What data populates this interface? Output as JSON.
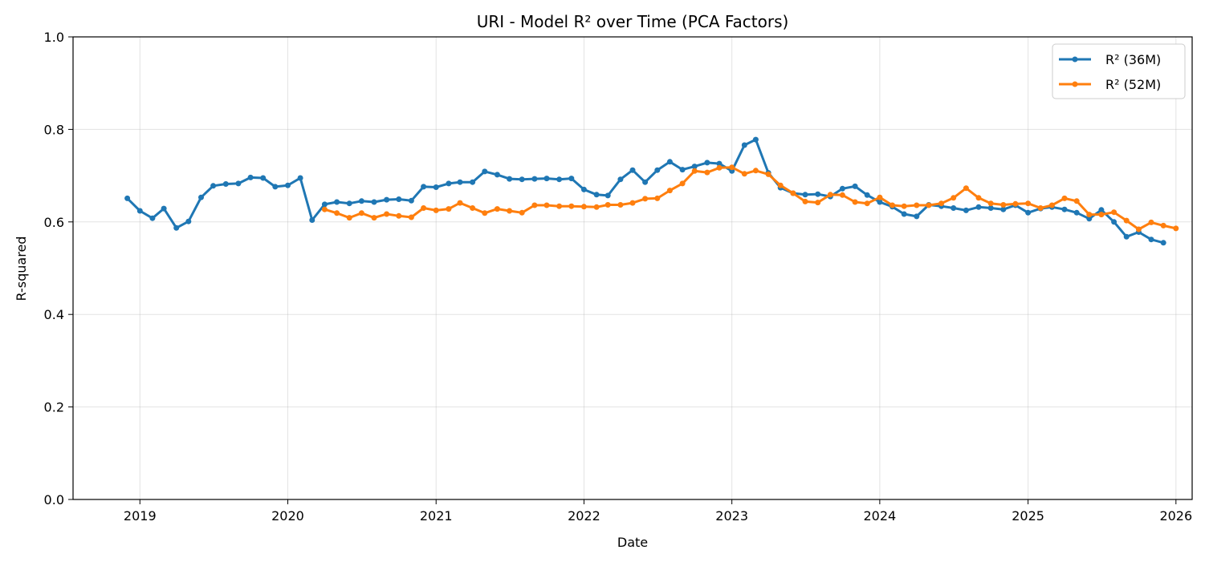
{
  "chart_data": {
    "type": "line",
    "title": "URI - Model R² over Time (PCA Factors)",
    "xlabel": "Date",
    "ylabel": "R-squared",
    "ylim": [
      0,
      1
    ],
    "xlim": [
      "2018-07-20",
      "2026-02-10"
    ],
    "x_ticks": [
      "2019",
      "2020",
      "2021",
      "2022",
      "2023",
      "2024",
      "2025",
      "2026"
    ],
    "y_ticks": [
      "0.0",
      "0.2",
      "0.4",
      "0.6",
      "0.8",
      "1.0"
    ],
    "grid": true,
    "legend_position": "upper right",
    "series": [
      {
        "name": "R² (36M)",
        "color": "#1f77b4",
        "start": "2018-12",
        "values": [
          0.651,
          0.624,
          0.608,
          0.629,
          0.587,
          0.601,
          0.653,
          0.678,
          0.682,
          0.683,
          0.696,
          0.695,
          0.676,
          0.679,
          0.695,
          0.604,
          0.638,
          0.643,
          0.64,
          0.645,
          0.643,
          0.648,
          0.649,
          0.646,
          0.676,
          0.675,
          0.683,
          0.686,
          0.686,
          0.709,
          0.702,
          0.693,
          0.692,
          0.693,
          0.694,
          0.692,
          0.694,
          0.67,
          0.659,
          0.657,
          0.692,
          0.712,
          0.686,
          0.712,
          0.73,
          0.713,
          0.72,
          0.728,
          0.726,
          0.71,
          0.766,
          0.778,
          0.706,
          0.674,
          0.662,
          0.659,
          0.66,
          0.655,
          0.672,
          0.677,
          0.658,
          0.643,
          0.633,
          0.617,
          0.612,
          0.637,
          0.634,
          0.63,
          0.625,
          0.632,
          0.63,
          0.627,
          0.636,
          0.62,
          0.629,
          0.632,
          0.627,
          0.62,
          0.607,
          0.626,
          0.6,
          0.568,
          0.578,
          0.562,
          0.555
        ]
      },
      {
        "name": "R² (52M)",
        "color": "#ff7f0e",
        "start": "2020-04",
        "values": [
          0.627,
          0.619,
          0.609,
          0.619,
          0.609,
          0.617,
          0.613,
          0.61,
          0.63,
          0.625,
          0.628,
          0.641,
          0.63,
          0.619,
          0.628,
          0.624,
          0.62,
          0.636,
          0.636,
          0.634,
          0.634,
          0.633,
          0.632,
          0.637,
          0.637,
          0.641,
          0.65,
          0.651,
          0.668,
          0.683,
          0.71,
          0.707,
          0.717,
          0.718,
          0.704,
          0.711,
          0.703,
          0.679,
          0.662,
          0.644,
          0.642,
          0.659,
          0.658,
          0.643,
          0.64,
          0.653,
          0.636,
          0.634,
          0.636,
          0.636,
          0.64,
          0.652,
          0.673,
          0.652,
          0.64,
          0.637,
          0.639,
          0.64,
          0.63,
          0.636,
          0.651,
          0.645,
          0.616,
          0.616,
          0.621,
          0.603,
          0.584,
          0.599,
          0.592,
          0.586
        ]
      }
    ]
  }
}
